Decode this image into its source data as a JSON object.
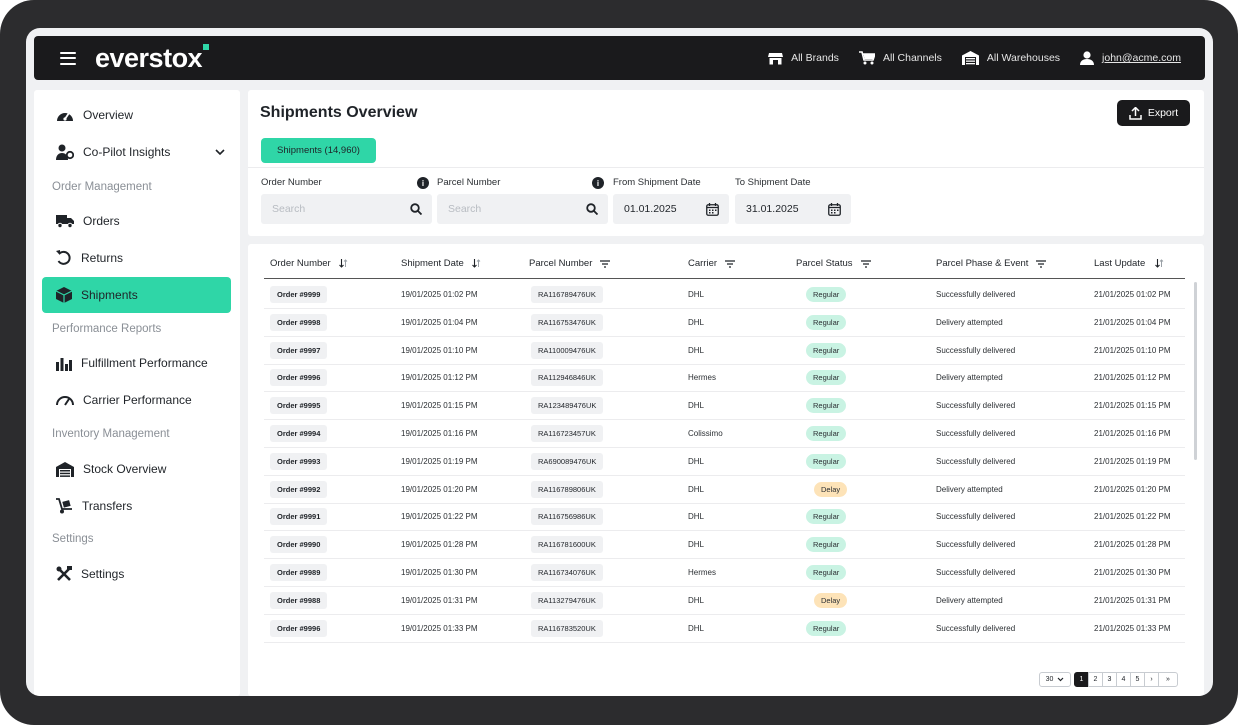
{
  "header": {
    "logo": "everstox",
    "brands": "All Brands",
    "channels": "All Channels",
    "warehouses": "All Warehouses",
    "user": "john@acme.com"
  },
  "sidebar": {
    "overview": "Overview",
    "copilot": "Co-Pilot Insights",
    "section_order": "Order Management",
    "orders": "Orders",
    "returns": "Returns",
    "shipments": "Shipments",
    "section_perf": "Performance Reports",
    "fulfillment": "Fulfillment Performance",
    "carrier": "Carrier Performance",
    "section_inv": "Inventory Management",
    "stock": "Stock Overview",
    "transfers": "Transfers",
    "section_settings": "Settings",
    "settings": "Settings"
  },
  "main": {
    "title": "Shipments Overview",
    "export_label": "Export",
    "tab_label": "Shipments (14,960)",
    "filters": {
      "order_number_label": "Order Number",
      "order_number_placeholder": "Search",
      "parcel_number_label": "Parcel Number",
      "parcel_number_placeholder": "Search",
      "from_label": "From Shipment Date",
      "from_value": "01.01.2025",
      "to_label": "To Shipment Date",
      "to_value": "31.01.2025"
    }
  },
  "table": {
    "columns": [
      "Order Number",
      "Shipment Date",
      "Parcel Number",
      "Carrier",
      "Parcel Status",
      "Parcel Phase & Event",
      "Last Update"
    ],
    "rows": [
      {
        "order": "Order #9999",
        "date": "19/01/2025 01:02 PM",
        "parcel": "RA116789476UK",
        "carrier": "DHL",
        "status": "Regular",
        "phase": "Successfully delivered",
        "updated": "21/01/2025 01:02 PM"
      },
      {
        "order": "Order #9998",
        "date": "19/01/2025 01:04 PM",
        "parcel": "RA116753476UK",
        "carrier": "DHL",
        "status": "Regular",
        "phase": "Delivery attempted",
        "updated": "21/01/2025 01:04 PM"
      },
      {
        "order": "Order #9997",
        "date": "19/01/2025 01:10 PM",
        "parcel": "RA110009476UK",
        "carrier": "DHL",
        "status": "Regular",
        "phase": "Successfully delivered",
        "updated": "21/01/2025 01:10 PM"
      },
      {
        "order": "Order #9996",
        "date": "19/01/2025 01:12 PM",
        "parcel": "RA112946846UK",
        "carrier": "Hermes",
        "status": "Regular",
        "phase": "Delivery attempted",
        "updated": "21/01/2025 01:12 PM"
      },
      {
        "order": "Order #9995",
        "date": "19/01/2025 01:15 PM",
        "parcel": "RA123489476UK",
        "carrier": "DHL",
        "status": "Regular",
        "phase": "Successfully delivered",
        "updated": "21/01/2025 01:15 PM"
      },
      {
        "order": "Order #9994",
        "date": "19/01/2025 01:16 PM",
        "parcel": "RA116723457UK",
        "carrier": "Colissimo",
        "status": "Regular",
        "phase": "Successfully delivered",
        "updated": "21/01/2025 01:16 PM"
      },
      {
        "order": "Order #9993",
        "date": "19/01/2025 01:19 PM",
        "parcel": "RA690089476UK",
        "carrier": "DHL",
        "status": "Regular",
        "phase": "Successfully delivered",
        "updated": "21/01/2025 01:19 PM"
      },
      {
        "order": "Order #9992",
        "date": "19/01/2025 01:20 PM",
        "parcel": "RA116789806UK",
        "carrier": "DHL",
        "status": "Delay",
        "phase": "Delivery attempted",
        "updated": "21/01/2025 01:20 PM"
      },
      {
        "order": "Order #9991",
        "date": "19/01/2025 01:22 PM",
        "parcel": "RA116756986UK",
        "carrier": "DHL",
        "status": "Regular",
        "phase": "Successfully delivered",
        "updated": "21/01/2025 01:22 PM"
      },
      {
        "order": "Order #9990",
        "date": "19/01/2025 01:28 PM",
        "parcel": "RA116781600UK",
        "carrier": "DHL",
        "status": "Regular",
        "phase": "Successfully delivered",
        "updated": "21/01/2025 01:28 PM"
      },
      {
        "order": "Order #9989",
        "date": "19/01/2025 01:30 PM",
        "parcel": "RA116734076UK",
        "carrier": "Hermes",
        "status": "Regular",
        "phase": "Successfully delivered",
        "updated": "21/01/2025 01:30 PM"
      },
      {
        "order": "Order #9988",
        "date": "19/01/2025 01:31 PM",
        "parcel": "RA113279476UK",
        "carrier": "DHL",
        "status": "Delay",
        "phase": "Delivery attempted",
        "updated": "21/01/2025 01:31 PM"
      },
      {
        "order": "Order #9996",
        "date": "19/01/2025 01:33 PM",
        "parcel": "RA116783520UK",
        "carrier": "DHL",
        "status": "Regular",
        "phase": "Successfully delivered",
        "updated": "21/01/2025 01:33 PM"
      }
    ]
  },
  "pagination": {
    "page_size": "30",
    "pages": [
      "1",
      "2",
      "3",
      "4",
      "5"
    ],
    "next": "›",
    "last": "»"
  },
  "colors": {
    "accent": "#2fd6a7",
    "regular_bg": "#c9f3e3",
    "delay_bg": "#fde3b8",
    "dark": "#1a1a1c"
  }
}
